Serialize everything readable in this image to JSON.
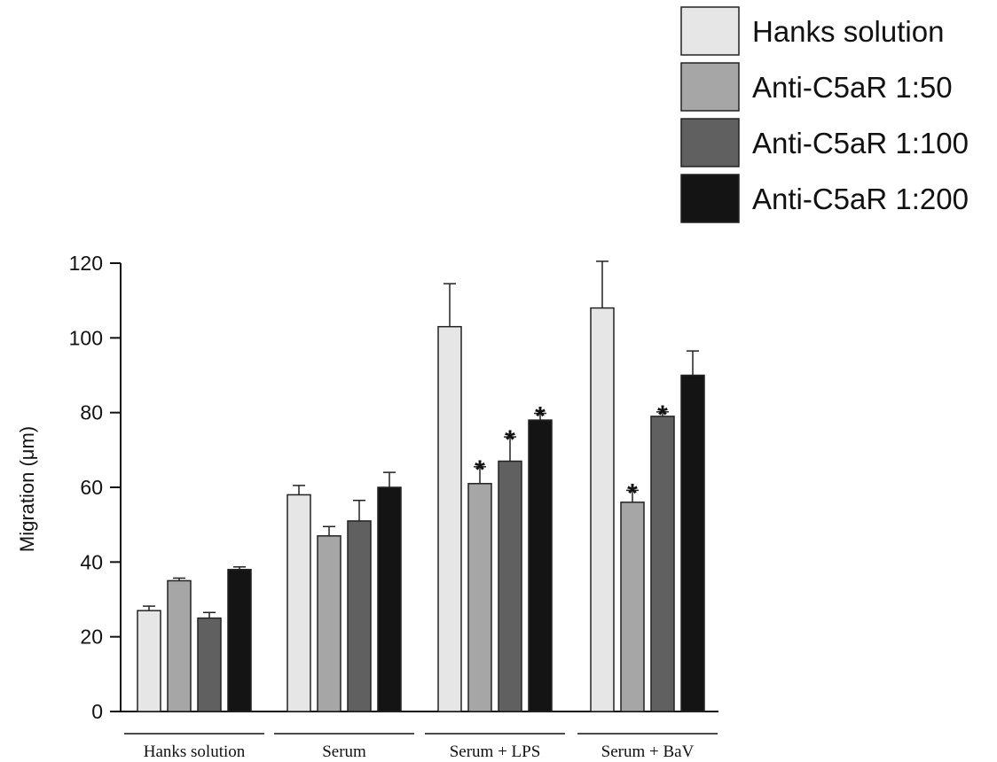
{
  "chart_data": {
    "type": "bar",
    "title": "",
    "xlabel": "",
    "ylabel": "Migration (μm)",
    "ylim": [
      0,
      120
    ],
    "yticks": [
      0,
      20,
      40,
      60,
      80,
      100,
      120
    ],
    "categories": [
      "Hanks solution",
      "Serum",
      "Serum + LPS",
      "Serum + BaV"
    ],
    "legend_position": "top-right",
    "grid": false,
    "series": [
      {
        "name": "Hanks solution",
        "color": "#e6e6e6",
        "values": [
          27,
          58,
          103,
          108
        ],
        "errors": [
          1.2,
          2.5,
          11.5,
          12.5
        ],
        "significant": [
          false,
          false,
          false,
          false
        ]
      },
      {
        "name": "Anti-C5aR 1:50",
        "color": "#a6a6a6",
        "values": [
          35,
          47,
          61,
          56
        ],
        "errors": [
          0.7,
          2.5,
          4.5,
          3.2
        ],
        "significant": [
          false,
          false,
          true,
          true
        ]
      },
      {
        "name": "Anti-C5aR 1:100",
        "color": "#606060",
        "values": [
          25,
          51,
          67,
          79
        ],
        "errors": [
          1.5,
          5.5,
          6.5,
          1.2
        ],
        "significant": [
          false,
          false,
          true,
          true
        ]
      },
      {
        "name": "Anti-C5aR 1:200",
        "color": "#141414",
        "values": [
          38,
          60,
          78,
          90
        ],
        "errors": [
          0.7,
          4.0,
          1.8,
          6.5
        ],
        "significant": [
          false,
          false,
          true,
          false
        ]
      }
    ],
    "significance_marker": "*"
  }
}
